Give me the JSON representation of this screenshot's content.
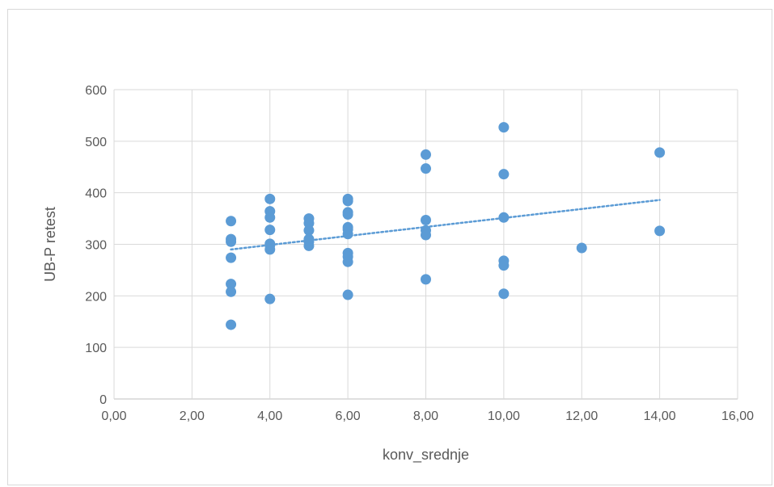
{
  "chart_data": {
    "type": "scatter",
    "title": "",
    "xlabel": "konv_srednje",
    "ylabel": "UB-P  retest",
    "xlim": [
      0,
      16
    ],
    "ylim": [
      0,
      600
    ],
    "x_ticks": [
      0,
      2,
      4,
      6,
      8,
      10,
      12,
      14,
      16
    ],
    "x_tick_labels": [
      "0,00",
      "2,00",
      "4,00",
      "6,00",
      "8,00",
      "10,00",
      "12,00",
      "14,00",
      "16,00"
    ],
    "y_ticks": [
      0,
      100,
      200,
      300,
      400,
      500,
      600
    ],
    "y_tick_labels": [
      "0",
      "100",
      "200",
      "300",
      "400",
      "500",
      "600"
    ],
    "grid": true,
    "legend": "none",
    "marker_color": "#5b9bd5",
    "trendline": {
      "type": "linear",
      "color": "#5b9bd5",
      "style": "dotted",
      "x": [
        3,
        14
      ],
      "y": [
        290,
        386
      ]
    },
    "series": [
      {
        "points": [
          [
            3,
            345
          ],
          [
            3,
            310
          ],
          [
            3,
            305
          ],
          [
            3,
            274
          ],
          [
            3,
            223
          ],
          [
            3,
            208
          ],
          [
            3,
            144
          ],
          [
            4,
            388
          ],
          [
            4,
            364
          ],
          [
            4,
            352
          ],
          [
            4,
            328
          ],
          [
            4,
            301
          ],
          [
            4,
            298
          ],
          [
            4,
            290
          ],
          [
            4,
            194
          ],
          [
            5,
            350
          ],
          [
            5,
            341
          ],
          [
            5,
            327
          ],
          [
            5,
            310
          ],
          [
            5,
            305
          ],
          [
            5,
            297
          ],
          [
            6,
            388
          ],
          [
            6,
            384
          ],
          [
            6,
            362
          ],
          [
            6,
            358
          ],
          [
            6,
            333
          ],
          [
            6,
            329
          ],
          [
            6,
            320
          ],
          [
            6,
            283
          ],
          [
            6,
            276
          ],
          [
            6,
            266
          ],
          [
            6,
            202
          ],
          [
            8,
            474
          ],
          [
            8,
            447
          ],
          [
            8,
            347
          ],
          [
            8,
            327
          ],
          [
            8,
            318
          ],
          [
            8,
            232
          ],
          [
            10,
            527
          ],
          [
            10,
            436
          ],
          [
            10,
            352
          ],
          [
            10,
            268
          ],
          [
            10,
            259
          ],
          [
            10,
            204
          ],
          [
            12,
            293
          ],
          [
            14,
            478
          ],
          [
            14,
            326
          ]
        ]
      }
    ]
  }
}
